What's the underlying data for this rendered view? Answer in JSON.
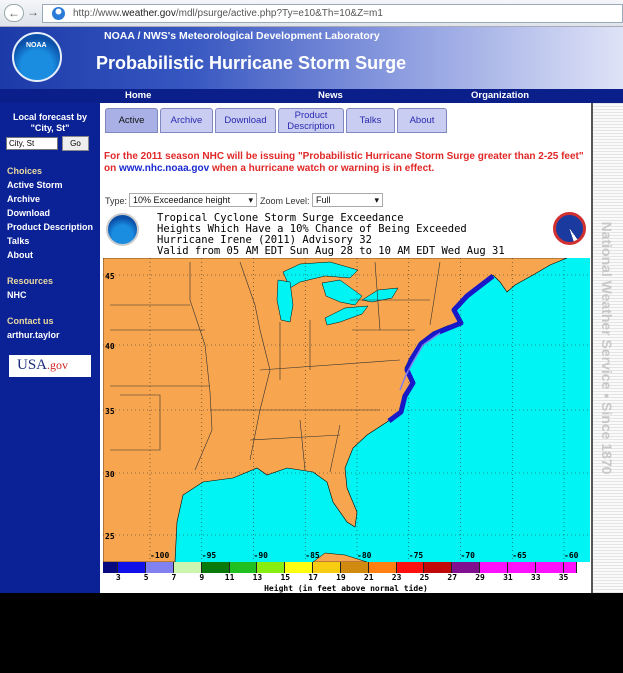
{
  "browser": {
    "url_prefix": "http://www.",
    "url_domain": "weather.gov",
    "url_path": "/mdl/psurge/active.php?Ty=e10&Th=10&Z=m1"
  },
  "header": {
    "lab": "NOAA / NWS's Meteorological Development Laboratory",
    "title": "Probabilistic Hurricane Storm Surge",
    "logo_text": "NOAA"
  },
  "topnav": [
    "Home",
    "News",
    "Organization"
  ],
  "sidebar": {
    "local_label": "Local forecast by",
    "local_label2": "\"City, St\"",
    "city_value": "City, St",
    "go": "Go",
    "choices_head": "Choices",
    "choices": [
      "Active Storm",
      "Archive",
      "Download",
      "Product Description",
      "Talks",
      "About"
    ],
    "resources_head": "Resources",
    "resources": [
      "NHC"
    ],
    "contact_head": "Contact us",
    "contact": "arthur.taylor",
    "usagov": "USA",
    "usagov2": ".gov"
  },
  "tabs": [
    {
      "label": "Active",
      "active": true
    },
    {
      "label": "Archive"
    },
    {
      "label": "Download"
    },
    {
      "label": "Product Description"
    },
    {
      "label": "Talks"
    },
    {
      "label": "About"
    }
  ],
  "notice": {
    "part1": "For the 2011 season NHC will be issuing \"Probabilistic Hurricane Storm Surge greater than 2-25 feet\"",
    "on": "on ",
    "link": "www.nhc.noaa.gov",
    "part2": " when a hurricane watch or warning is in effect."
  },
  "controls": {
    "type_label": "Type:",
    "type_value": "10% Exceedance height",
    "zoom_label": "Zoom Level:",
    "zoom_value": "Full"
  },
  "product": {
    "lines": [
      "Tropical Cyclone Storm Surge Exceedance",
      "Heights Which Have a 10% Chance of Being Exceeded",
      "Hurricane Irene (2011) Advisory 32",
      "Valid from 05 AM EDT Sun Aug 28 to 10 AM EDT Wed Aug 31"
    ]
  },
  "right_strip": "National Weather Service • Since 1870",
  "chart_data": {
    "type": "heatmap",
    "lon_ticks": [
      -100,
      -95,
      -90,
      -85,
      -80,
      -75,
      -70,
      -65,
      -60
    ],
    "lat_ticks": [
      45,
      40,
      35,
      30,
      25
    ],
    "colorbar": {
      "labels": [
        3,
        5,
        7,
        9,
        11,
        13,
        15,
        17,
        19,
        21,
        23,
        25,
        27,
        29,
        31,
        33,
        35
      ],
      "colors": [
        "#0a0a80",
        "#1010e8",
        "#8080f0",
        "#ccf5b0",
        "#0a7a0a",
        "#20c020",
        "#88ee10",
        "#ffff10",
        "#f8cc10",
        "#d08a10",
        "#ff8010",
        "#ff1010",
        "#c00808",
        "#801090",
        "#ff10ff",
        "#ff10ff",
        "#ff10ff",
        "#ff10ff"
      ],
      "title": "Height (in feet above normal tide)"
    },
    "land_color": "#f7a54e",
    "water_color": "#00f4f4",
    "surge_color": "#2020d8"
  }
}
